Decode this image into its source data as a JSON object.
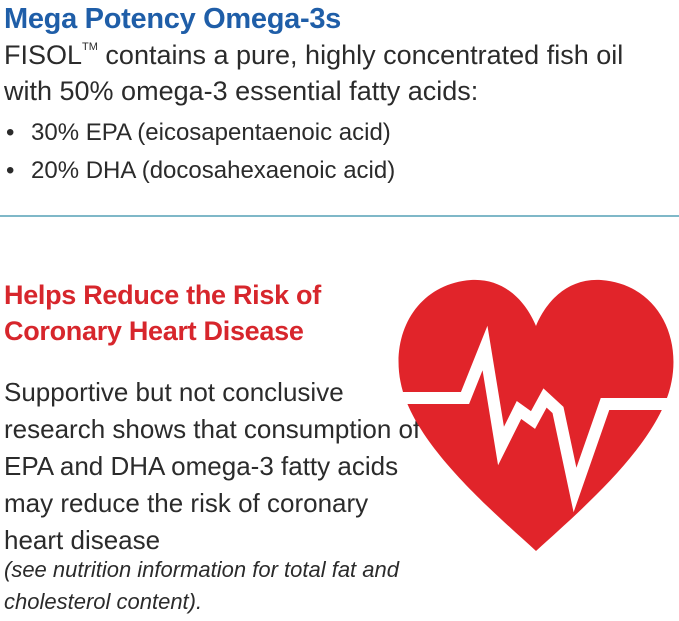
{
  "omega_section": {
    "title": "Mega Potency Omega-3s",
    "brand": "FISOL",
    "trademark": "TM",
    "intro_rest": " contains a pure, highly concentrated fish oil with 50% omega-3 essential fatty acids:",
    "bullet_glyph": "•",
    "bullets": [
      "30% EPA (eicosapentaenoic acid)",
      "20% DHA (docosahexaenoic acid)"
    ]
  },
  "heart_section": {
    "title": "Helps Reduce the Risk of Coronary Heart Disease",
    "body": "Supportive but not conclusive research shows that consumption of EPA and DHA omega-3 fatty acids may reduce the risk of coronary heart disease",
    "note": "(see nutrition information for total fat and cholesterol content).",
    "icon": "heart-pulse-icon"
  },
  "colors": {
    "title_blue": "#1f5ea8",
    "title_red": "#d7262c",
    "divider": "#7fb8c8",
    "heart_red": "#e1242a",
    "text": "#2b2b2b"
  }
}
